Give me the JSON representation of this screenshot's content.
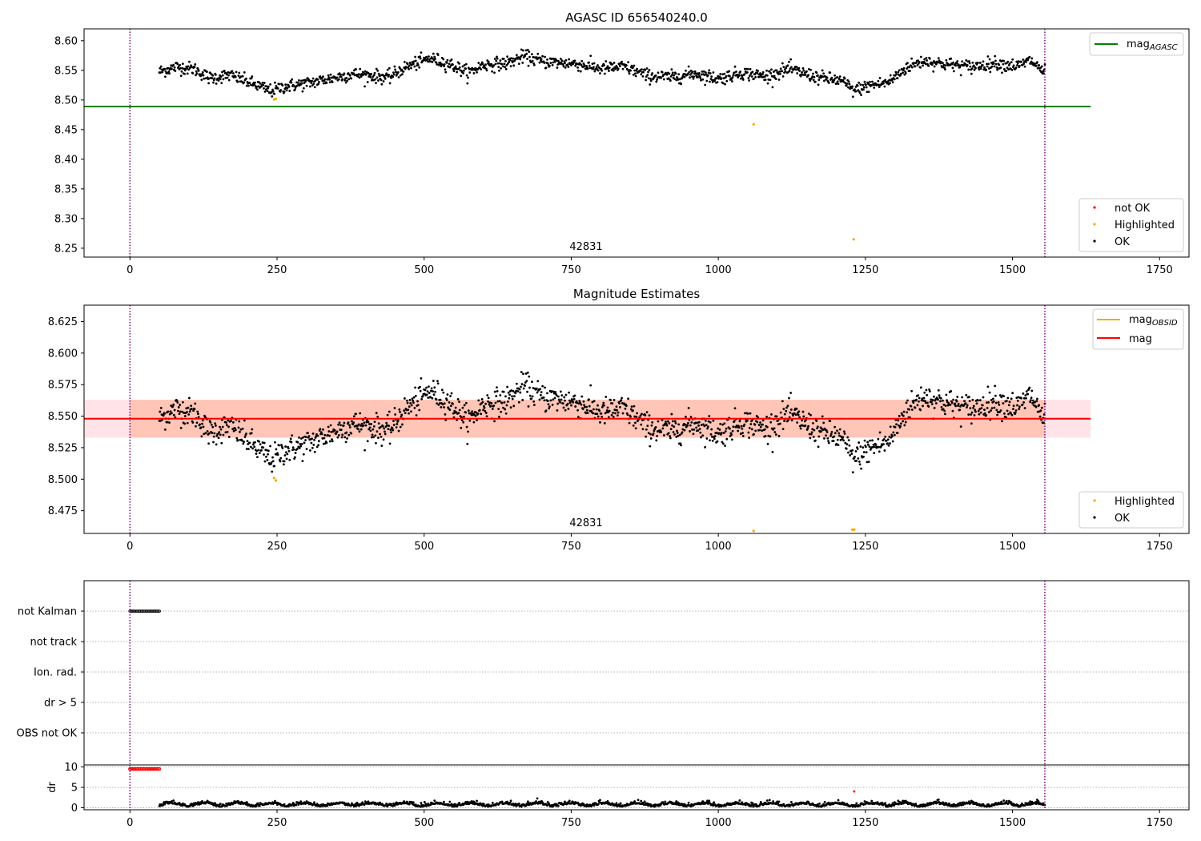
{
  "colors": {
    "ok": "#000000",
    "highlighted": "#ffa500",
    "not_ok": "#ff0000",
    "agasc_line": "#008000",
    "mag_line": "#ff0000",
    "obsid_line": "#ffa500",
    "band_pink": "#ffc0cb",
    "band_orange": "#ffa07a",
    "marker_vline": "#800080",
    "grid": "#b0b0b0"
  },
  "chart_data": [
    {
      "type": "scatter",
      "title": "AGASC ID 656540240.0",
      "xlim": [
        -78,
        1800
      ],
      "ylim": [
        8.235,
        8.62
      ],
      "xticks": [
        "0",
        "250",
        "500",
        "750",
        "1000",
        "1250",
        "1500",
        "1750"
      ],
      "yticks": [
        "8.25",
        "8.30",
        "8.35",
        "8.40",
        "8.45",
        "8.50",
        "8.55",
        "8.60"
      ],
      "annotation": "42831",
      "mag_agasc": 8.489,
      "vlines": [
        0,
        1555
      ],
      "legend_line": [
        "mag",
        "AGASC"
      ],
      "legend_points": [
        "not OK",
        "Highlighted",
        "OK"
      ],
      "series": [
        {
          "name": "OK",
          "n_points": 1510,
          "x_range": [
            50,
            1555
          ]
        },
        {
          "name": "Highlighted",
          "points": [
            [
              245,
              8.501
            ],
            [
              248,
              8.502
            ],
            [
              1060,
              8.459
            ],
            [
              1230,
              8.265
            ]
          ]
        }
      ]
    },
    {
      "type": "scatter",
      "title": "Magnitude Estimates",
      "xlim": [
        -78,
        1800
      ],
      "ylim": [
        8.457,
        8.638
      ],
      "xticks": [
        "0",
        "250",
        "500",
        "750",
        "1000",
        "1250",
        "1500",
        "1750"
      ],
      "yticks": [
        "8.475",
        "8.500",
        "8.525",
        "8.550",
        "8.575",
        "8.600",
        "8.625"
      ],
      "annotation": "42831",
      "mag": 8.548,
      "mag_band": [
        8.533,
        8.563
      ],
      "vlines": [
        0,
        1555
      ],
      "legend_lines": [
        [
          "mag",
          "OBSID"
        ],
        [
          "mag",
          ""
        ]
      ],
      "legend_points": [
        "Highlighted",
        "OK"
      ],
      "series": [
        {
          "name": "OK",
          "n_points": 1510,
          "x_range": [
            50,
            1555
          ]
        },
        {
          "name": "Highlighted",
          "points": [
            [
              245,
              8.501
            ],
            [
              248,
              8.499
            ],
            [
              1060,
              8.459
            ],
            [
              1228,
              8.46
            ],
            [
              1231,
              8.46
            ]
          ]
        }
      ]
    },
    {
      "type": "scatter",
      "xlim": [
        -78,
        1800
      ],
      "ylabels": [
        "not Kalman",
        "not track",
        "Ion. rad.",
        "dr > 5",
        "OBS not OK"
      ],
      "vlines": [
        0,
        1555
      ],
      "not_kalman_x_range": [
        0,
        50
      ]
    },
    {
      "type": "scatter",
      "xlim": [
        -78,
        1800
      ],
      "ylim": [
        -0.5,
        10.5
      ],
      "ylabel": "dr",
      "yticks": [
        "0",
        "5",
        "10"
      ],
      "xticks": [
        "0",
        "250",
        "500",
        "750",
        "1000",
        "1250",
        "1500",
        "1750"
      ],
      "vlines": [
        0,
        1555
      ],
      "clipped_x_range": [
        0,
        50
      ],
      "clipped_value": 9.5,
      "not_ok_point": [
        1231,
        4.0
      ]
    }
  ]
}
